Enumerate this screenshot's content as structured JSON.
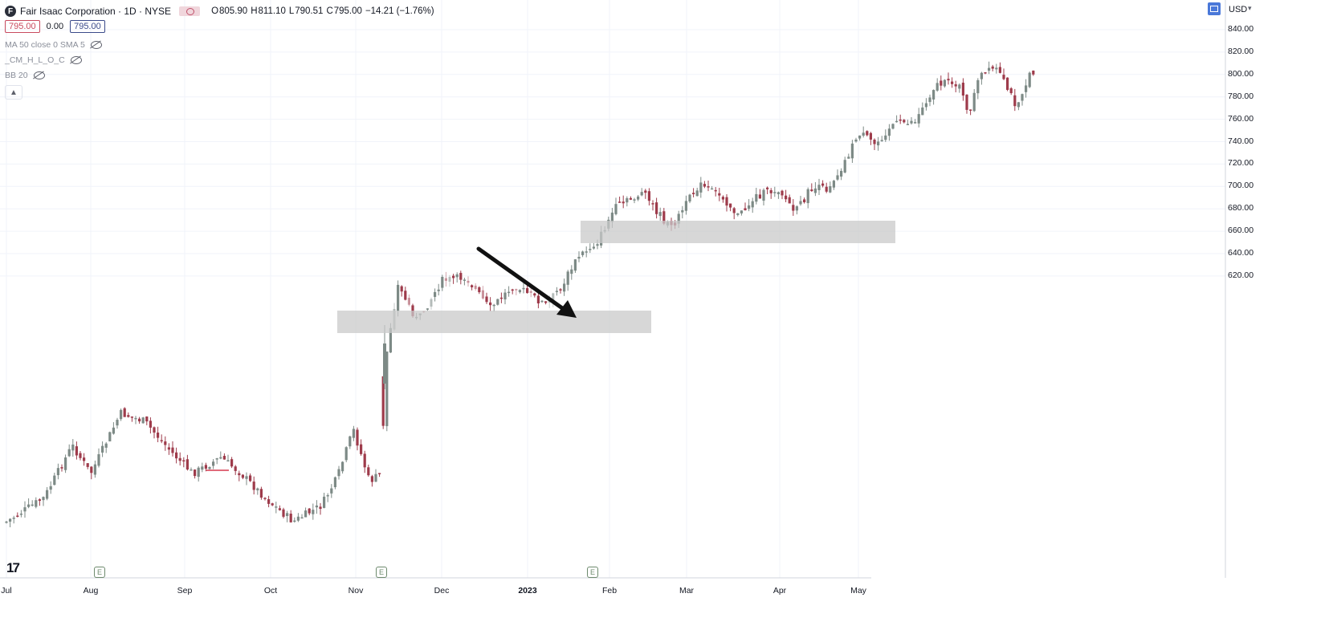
{
  "header": {
    "logo_letter": "F",
    "title": "Fair Isaac Corporation · 1D · NYSE",
    "ohlc": [
      {
        "label": "O",
        "value": "805.90"
      },
      {
        "label": "H",
        "value": "811.10"
      },
      {
        "label": "L",
        "value": "790.51"
      },
      {
        "label": "C",
        "value": "795.00"
      }
    ],
    "change": "−14.21 (−1.76%)",
    "sell_price": "795.00",
    "spread": "0.00",
    "buy_price": "795.00"
  },
  "indicators": [
    {
      "label": "MA 50 close 0 SMA 5"
    },
    {
      "label": "_CM_H_L_O_C"
    },
    {
      "label": "BB 20"
    }
  ],
  "collapse_icon": "chevron-up-icon",
  "currency": "USD",
  "footer": {
    "logo": "17"
  },
  "earnings_badge": "E",
  "colors": {
    "up": "#7d8a86",
    "down": "#9e3b4b",
    "zone": "#c9c9c9",
    "arrow": "#111111",
    "grid": "#f0f3fa"
  },
  "chart_data": {
    "type": "candlestick",
    "y_ticks": [
      "840.00",
      "820.00",
      "800.00",
      "780.00",
      "760.00",
      "740.00",
      "720.00",
      "700.00",
      "680.00",
      "660.00",
      "640.00",
      "620.00"
    ],
    "ylim": [
      612,
      846
    ],
    "x_ticks": [
      "Jul",
      "Aug",
      "Sep",
      "Oct",
      "Nov",
      "Dec",
      "2023",
      "Feb",
      "Mar",
      "Apr",
      "May"
    ],
    "approx_close_path": [
      [
        "Jul",
        395
      ],
      [
        "Aug",
        425
      ],
      [
        "Sep",
        412
      ],
      [
        "Oct",
        395
      ],
      [
        "Nov",
        420
      ],
      [
        "Nov",
        560
      ],
      [
        "Dec",
        580
      ],
      [
        "2023",
        575
      ],
      [
        "Feb",
        690
      ],
      [
        "Mar",
        695
      ],
      [
        "Apr",
        690
      ],
      [
        "May",
        795
      ]
    ],
    "zones": [
      {
        "from": "Nov",
        "to": "Jan",
        "low": 562,
        "high": 582
      },
      {
        "from": "Jan",
        "to": "Apr",
        "low": 650,
        "high": 670
      }
    ],
    "annotation": "arrow pointing down-right into the lower zone"
  }
}
